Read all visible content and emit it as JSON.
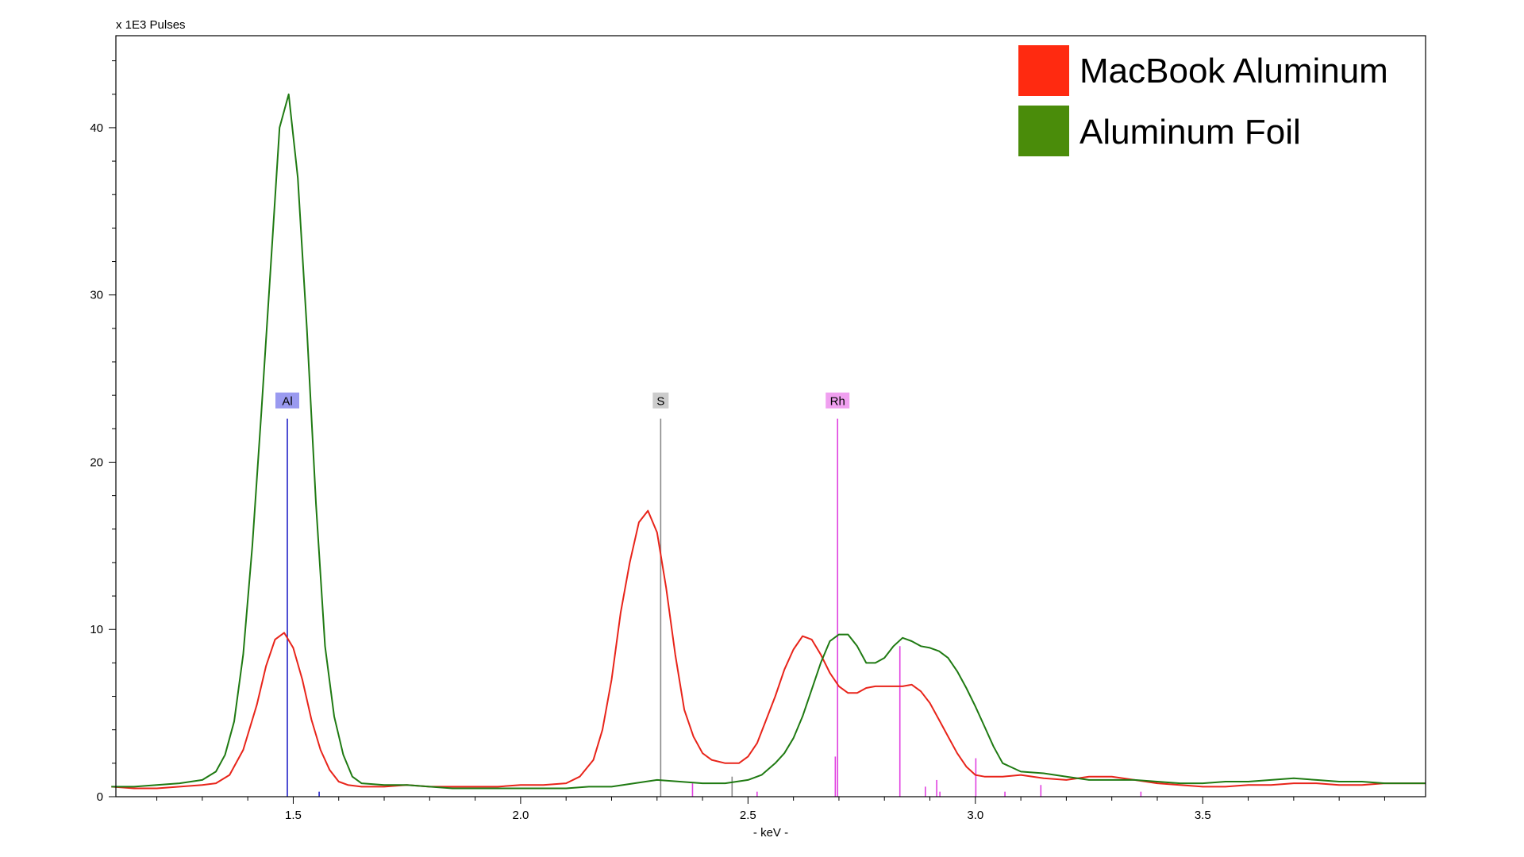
{
  "chart_data": {
    "type": "line",
    "title": "",
    "y_unit_label": "x 1E3 Pulses",
    "xlabel": "- keV -",
    "xlim": [
      1.11,
      3.99
    ],
    "ylim": [
      0,
      45.5
    ],
    "x_ticks": [
      1.5,
      2.0,
      2.5,
      3.0,
      3.5
    ],
    "x_tick_labels": [
      "1.5",
      "2.0",
      "2.5",
      "3.0",
      "3.5"
    ],
    "y_ticks": [
      0,
      10,
      20,
      30,
      40
    ],
    "y_tick_labels": [
      "0",
      "10",
      "20",
      "30",
      "40"
    ],
    "grid": false,
    "legend_position": "top-right",
    "series": [
      {
        "name": "MacBook Aluminum",
        "color": "#e8241a",
        "x": [
          1.1,
          1.15,
          1.2,
          1.25,
          1.3,
          1.33,
          1.36,
          1.39,
          1.42,
          1.44,
          1.46,
          1.48,
          1.5,
          1.52,
          1.54,
          1.56,
          1.58,
          1.6,
          1.62,
          1.65,
          1.7,
          1.75,
          1.8,
          1.85,
          1.9,
          1.95,
          2.0,
          2.05,
          2.1,
          2.13,
          2.16,
          2.18,
          2.2,
          2.22,
          2.24,
          2.26,
          2.28,
          2.3,
          2.32,
          2.34,
          2.36,
          2.38,
          2.4,
          2.42,
          2.45,
          2.48,
          2.5,
          2.52,
          2.54,
          2.56,
          2.58,
          2.6,
          2.62,
          2.64,
          2.66,
          2.68,
          2.7,
          2.72,
          2.74,
          2.76,
          2.78,
          2.8,
          2.82,
          2.84,
          2.86,
          2.88,
          2.9,
          2.92,
          2.94,
          2.96,
          2.98,
          3.0,
          3.02,
          3.04,
          3.06,
          3.1,
          3.15,
          3.2,
          3.25,
          3.3,
          3.35,
          3.4,
          3.45,
          3.5,
          3.55,
          3.6,
          3.65,
          3.7,
          3.75,
          3.8,
          3.85,
          3.9,
          3.99
        ],
        "y": [
          0.6,
          0.5,
          0.5,
          0.6,
          0.7,
          0.8,
          1.3,
          2.8,
          5.5,
          7.8,
          9.4,
          9.8,
          8.9,
          7.0,
          4.6,
          2.8,
          1.6,
          0.9,
          0.7,
          0.6,
          0.6,
          0.7,
          0.6,
          0.6,
          0.6,
          0.6,
          0.7,
          0.7,
          0.8,
          1.2,
          2.2,
          4.0,
          7.0,
          11.0,
          14.0,
          16.4,
          17.1,
          15.8,
          12.5,
          8.5,
          5.2,
          3.6,
          2.6,
          2.2,
          2.0,
          2.0,
          2.4,
          3.2,
          4.6,
          6.0,
          7.6,
          8.8,
          9.6,
          9.4,
          8.5,
          7.4,
          6.6,
          6.2,
          6.2,
          6.5,
          6.6,
          6.6,
          6.6,
          6.6,
          6.7,
          6.3,
          5.6,
          4.6,
          3.6,
          2.6,
          1.8,
          1.3,
          1.2,
          1.2,
          1.2,
          1.3,
          1.1,
          1.0,
          1.2,
          1.2,
          1.0,
          0.8,
          0.7,
          0.6,
          0.6,
          0.7,
          0.7,
          0.8,
          0.8,
          0.7,
          0.7,
          0.8,
          0.8
        ]
      },
      {
        "name": "Aluminum Foil",
        "color": "#1f7a12",
        "x": [
          1.1,
          1.15,
          1.2,
          1.25,
          1.3,
          1.33,
          1.35,
          1.37,
          1.39,
          1.41,
          1.43,
          1.45,
          1.47,
          1.49,
          1.51,
          1.53,
          1.55,
          1.57,
          1.59,
          1.61,
          1.63,
          1.65,
          1.7,
          1.75,
          1.8,
          1.85,
          1.9,
          1.95,
          2.0,
          2.05,
          2.1,
          2.15,
          2.2,
          2.25,
          2.3,
          2.35,
          2.4,
          2.45,
          2.5,
          2.53,
          2.56,
          2.58,
          2.6,
          2.62,
          2.64,
          2.66,
          2.68,
          2.7,
          2.72,
          2.74,
          2.76,
          2.78,
          2.8,
          2.82,
          2.84,
          2.86,
          2.88,
          2.9,
          2.92,
          2.94,
          2.96,
          2.98,
          3.0,
          3.02,
          3.04,
          3.06,
          3.1,
          3.15,
          3.2,
          3.25,
          3.3,
          3.35,
          3.4,
          3.45,
          3.5,
          3.55,
          3.6,
          3.65,
          3.7,
          3.75,
          3.8,
          3.85,
          3.9,
          3.99
        ],
        "y": [
          0.6,
          0.6,
          0.7,
          0.8,
          1.0,
          1.5,
          2.5,
          4.5,
          8.5,
          15.0,
          23.0,
          31.5,
          40.0,
          42.0,
          37.0,
          28.0,
          17.5,
          9.0,
          4.8,
          2.5,
          1.2,
          0.8,
          0.7,
          0.7,
          0.6,
          0.5,
          0.5,
          0.5,
          0.5,
          0.5,
          0.5,
          0.6,
          0.6,
          0.8,
          1.0,
          0.9,
          0.8,
          0.8,
          1.0,
          1.3,
          2.0,
          2.6,
          3.5,
          4.8,
          6.4,
          8.0,
          9.3,
          9.7,
          9.7,
          9.0,
          8.0,
          8.0,
          8.3,
          9.0,
          9.5,
          9.3,
          9.0,
          8.9,
          8.7,
          8.3,
          7.5,
          6.5,
          5.4,
          4.2,
          3.0,
          2.0,
          1.5,
          1.4,
          1.2,
          1.0,
          1.0,
          1.0,
          0.9,
          0.8,
          0.8,
          0.9,
          0.9,
          1.0,
          1.1,
          1.0,
          0.9,
          0.9,
          0.8,
          0.8
        ]
      }
    ],
    "element_markers": [
      {
        "label": "Al",
        "x": 1.487,
        "height": 22.6,
        "color": "#2222c8",
        "label_bg": "#9a9af0"
      },
      {
        "label": "S",
        "x": 2.308,
        "height": 22.6,
        "color": "#888888",
        "label_bg": "#cccccc"
      },
      {
        "label": "Rh",
        "x": 2.697,
        "height": 22.6,
        "color": "#e040e0",
        "label_bg": "#f0a0f0"
      }
    ],
    "minor_lines": [
      {
        "x": 1.557,
        "height": 0.3,
        "color": "#2222c8"
      },
      {
        "x": 2.378,
        "height": 0.8,
        "color": "#e040e0"
      },
      {
        "x": 2.465,
        "height": 1.2,
        "color": "#888888"
      },
      {
        "x": 2.52,
        "height": 0.3,
        "color": "#e040e0"
      },
      {
        "x": 2.692,
        "height": 2.4,
        "color": "#e040e0"
      },
      {
        "x": 2.834,
        "height": 9.0,
        "color": "#e040e0"
      },
      {
        "x": 2.89,
        "height": 0.6,
        "color": "#e040e0"
      },
      {
        "x": 2.915,
        "height": 1.0,
        "color": "#e040e0"
      },
      {
        "x": 2.922,
        "height": 0.3,
        "color": "#e040e0"
      },
      {
        "x": 3.001,
        "height": 2.3,
        "color": "#e040e0"
      },
      {
        "x": 3.065,
        "height": 0.3,
        "color": "#e040e0"
      },
      {
        "x": 3.144,
        "height": 0.7,
        "color": "#e040e0"
      },
      {
        "x": 3.364,
        "height": 0.3,
        "color": "#e040e0"
      }
    ]
  }
}
